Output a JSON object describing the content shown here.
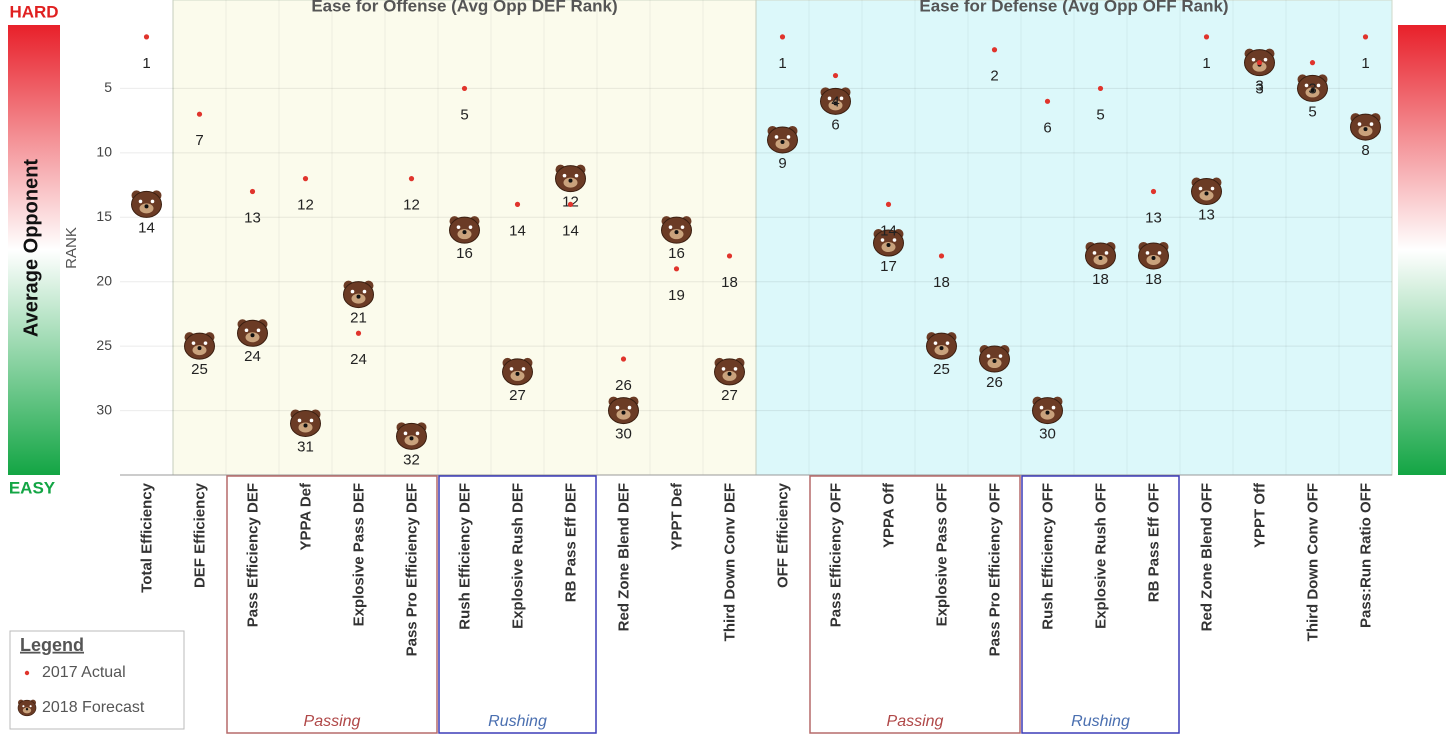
{
  "chart_data": {
    "type": "dot",
    "section_titles": [
      "Ease for Offense (Avg Opp DEF Rank)",
      "Ease for Defense (Avg Opp OFF Rank)"
    ],
    "group_labels": [
      "Passing",
      "Rushing",
      "Passing",
      "Rushing"
    ],
    "scale_labels": {
      "top": "HARD",
      "bottom": "EASY",
      "title": "Average Opponent"
    },
    "ylabel": "RANK",
    "legend_title": "Legend",
    "categories": [
      "Total Efficiency",
      "DEF Efficiency",
      "Pass Efficiency DEF",
      "YPPA Def",
      "Explosive Pass DEF",
      "Pass Pro Efficiency DEF",
      "Rush Efficiency DEF",
      "Explosive Rush DEF",
      "RB Pass Eff DEF",
      "Red Zone Blend DEF",
      "YPPT Def",
      "Third Down Conv DEF",
      "OFF Efficiency",
      "Pass Efficiency OFF",
      "YPPA Off",
      "Explosive Pass OFF",
      "Pass Pro Efficiency OFF",
      "Rush Efficiency OFF",
      "Explosive Rush OFF",
      "RB Pass Eff OFF",
      "Red Zone Blend OFF",
      "YPPT Off",
      "Third Down Conv OFF",
      "Pass:Run Ratio OFF"
    ],
    "series": [
      {
        "name": "2017 Actual",
        "color": "#e0342c",
        "values": [
          1,
          7,
          13,
          12,
          24,
          12,
          5,
          14,
          14,
          26,
          19,
          18,
          1,
          4,
          14,
          18,
          2,
          6,
          5,
          13,
          1,
          3,
          3,
          1
        ]
      },
      {
        "name": "2018 Forecast",
        "color": "#6b3b25",
        "values": [
          14,
          25,
          24,
          31,
          21,
          32,
          16,
          27,
          12,
          30,
          16,
          27,
          9,
          6,
          17,
          25,
          26,
          30,
          18,
          18,
          13,
          3,
          5,
          8
        ]
      }
    ],
    "ylim": [
      0,
      35
    ],
    "yticks": [
      5,
      10,
      15,
      20,
      25,
      30
    ],
    "y_inverted": true,
    "grid": true
  }
}
